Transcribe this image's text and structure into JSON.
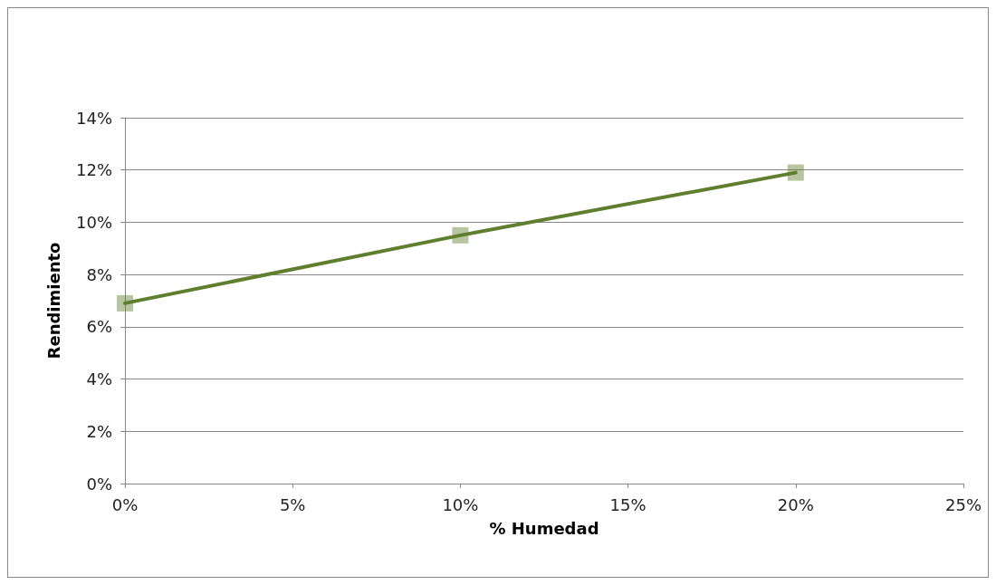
{
  "chart_data": {
    "type": "line",
    "xlabel": "% Humedad",
    "ylabel": "Rendimiento",
    "x": [
      0,
      10,
      20
    ],
    "series": [
      {
        "color": "#5f7f2f",
        "values": [
          6.9,
          9.5,
          11.9
        ]
      }
    ],
    "xlim": [
      0,
      25
    ],
    "xticks": [
      {
        "value": 0,
        "label": "0%"
      },
      {
        "value": 5,
        "label": "5%"
      },
      {
        "value": 10,
        "label": "10%"
      },
      {
        "value": 15,
        "label": "15%"
      },
      {
        "value": 20,
        "label": "20%"
      },
      {
        "value": 25,
        "label": "25%"
      }
    ],
    "ylim": [
      0,
      14
    ],
    "yticks": [
      {
        "value": 0,
        "label": "0%"
      },
      {
        "value": 2,
        "label": "2%"
      },
      {
        "value": 4,
        "label": "4%"
      },
      {
        "value": 6,
        "label": "6%"
      },
      {
        "value": 8,
        "label": "8%"
      },
      {
        "value": 10,
        "label": "10%"
      },
      {
        "value": 12,
        "label": "12%"
      },
      {
        "value": 14,
        "label": "14%"
      }
    ],
    "grid": "y",
    "marker": "square",
    "line_style": "solid"
  }
}
